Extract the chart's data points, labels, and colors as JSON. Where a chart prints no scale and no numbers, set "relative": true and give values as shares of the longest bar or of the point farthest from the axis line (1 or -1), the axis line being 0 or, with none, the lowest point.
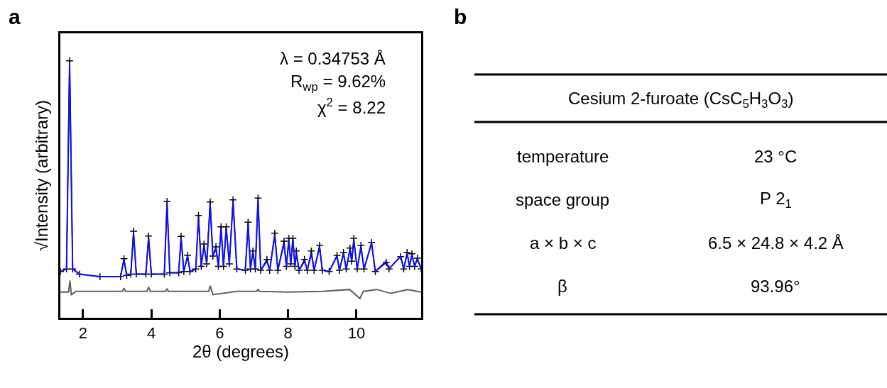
{
  "chart_data": [
    {
      "type": "line",
      "relative": true,
      "xlabel": "2θ (degrees)",
      "ylabel": "√Intensity (arbitrary)",
      "xlim": [
        1.34,
        11.89
      ],
      "xticks": [
        2,
        4,
        6,
        8,
        10
      ],
      "tick_labels": "x",
      "annotations": [
        "a",
        "λ = 0.34753 Å",
        "R$_{wp}$ = 9.62%",
        "χ$^{2}$ = 8.22"
      ],
      "x": [
        1.34,
        1.52,
        1.61,
        1.7,
        1.9,
        2.5,
        3.1,
        3.2,
        3.28,
        3.4,
        3.48,
        3.56,
        3.84,
        3.92,
        4.0,
        4.38,
        4.46,
        4.54,
        4.8,
        4.87,
        4.95,
        5.06,
        5.13,
        5.3,
        5.38,
        5.46,
        5.54,
        5.62,
        5.72,
        5.8,
        5.89,
        5.96,
        6.04,
        6.11,
        6.19,
        6.28,
        6.39,
        6.5,
        6.75,
        6.83,
        6.9,
        6.97,
        7.04,
        7.12,
        7.2,
        7.38,
        7.46,
        7.61,
        7.7,
        7.88,
        7.95,
        8.02,
        8.08,
        8.14,
        8.2,
        8.24,
        8.32,
        8.48,
        8.56,
        8.68,
        8.76,
        8.92,
        9.0,
        9.2,
        9.43,
        9.5,
        9.62,
        9.7,
        9.81,
        9.86,
        9.92,
        10.02,
        10.13,
        10.22,
        10.44,
        10.55,
        10.87,
        10.95,
        11.29,
        11.38,
        11.48,
        11.55,
        11.62,
        11.7,
        11.78,
        11.89
      ],
      "series": [
        {
          "color": "#000000",
          "marker": "cross",
          "values": [
            0.18,
            0.19,
            1.0,
            0.19,
            0.17,
            0.16,
            0.16,
            0.23,
            0.165,
            0.17,
            0.337,
            0.17,
            0.17,
            0.318,
            0.17,
            0.17,
            0.453,
            0.175,
            0.175,
            0.317,
            0.18,
            0.243,
            0.18,
            0.19,
            0.398,
            0.2,
            0.287,
            0.21,
            0.451,
            0.24,
            0.276,
            0.2,
            0.354,
            0.2,
            0.354,
            0.21,
            0.459,
            0.19,
            0.185,
            0.372,
            0.19,
            0.26,
            0.19,
            0.466,
            0.185,
            0.227,
            0.185,
            0.329,
            0.185,
            0.298,
            0.2,
            0.309,
            0.21,
            0.309,
            0.2,
            0.26,
            0.185,
            0.227,
            0.185,
            0.26,
            0.185,
            0.282,
            0.185,
            0.18,
            0.243,
            0.185,
            0.254,
            0.19,
            0.271,
            0.22,
            0.309,
            0.19,
            0.282,
            0.19,
            0.293,
            0.18,
            0.215,
            0.19,
            0.238,
            0.19,
            0.254,
            0.2,
            0.249,
            0.2,
            0.232,
            0.19
          ]
        },
        {
          "color": "#1010f0",
          "marker": "none",
          "values": [
            0.18,
            0.19,
            0.99,
            0.19,
            0.17,
            0.16,
            0.16,
            0.225,
            0.165,
            0.17,
            0.33,
            0.17,
            0.17,
            0.31,
            0.17,
            0.17,
            0.445,
            0.175,
            0.175,
            0.31,
            0.18,
            0.24,
            0.18,
            0.19,
            0.39,
            0.2,
            0.28,
            0.21,
            0.44,
            0.24,
            0.27,
            0.2,
            0.35,
            0.2,
            0.35,
            0.21,
            0.45,
            0.19,
            0.185,
            0.365,
            0.19,
            0.255,
            0.19,
            0.46,
            0.185,
            0.22,
            0.185,
            0.32,
            0.185,
            0.29,
            0.2,
            0.3,
            0.21,
            0.31,
            0.2,
            0.25,
            0.185,
            0.22,
            0.185,
            0.25,
            0.185,
            0.275,
            0.185,
            0.18,
            0.24,
            0.185,
            0.25,
            0.19,
            0.265,
            0.22,
            0.3,
            0.19,
            0.275,
            0.19,
            0.29,
            0.18,
            0.22,
            0.19,
            0.24,
            0.19,
            0.25,
            0.2,
            0.245,
            0.2,
            0.23,
            0.19
          ]
        },
        {
          "color": "#606060",
          "marker": "none",
          "x": [
            1.34,
            1.58,
            1.62,
            1.66,
            1.8,
            3.15,
            3.2,
            3.25,
            3.87,
            3.92,
            3.97,
            4.42,
            4.46,
            4.5,
            5.68,
            5.72,
            5.8,
            6.5,
            7.08,
            7.12,
            7.16,
            8.0,
            9.0,
            9.8,
            10.1,
            10.2,
            10.6,
            11.0,
            11.5,
            11.89
          ],
          "values": [
            0.1,
            0.1,
            0.145,
            0.09,
            0.103,
            0.103,
            0.115,
            0.103,
            0.103,
            0.12,
            0.103,
            0.103,
            0.113,
            0.103,
            0.103,
            0.125,
            0.09,
            0.103,
            0.103,
            0.11,
            0.103,
            0.1,
            0.103,
            0.11,
            0.075,
            0.103,
            0.11,
            0.095,
            0.11,
            0.1
          ]
        }
      ]
    },
    {
      "type": "other",
      "title": "Cesium 2-furoate (CsC$_{5}$H$_{3}$O$_{3}$)",
      "annotations": [
        "b",
        "temperature",
        "23 °C",
        "space group",
        "P 2$_{1}$",
        "a × b × c",
        "6.5 × 24.8 × 4.2 Å",
        "β",
        "93.96°"
      ]
    }
  ]
}
